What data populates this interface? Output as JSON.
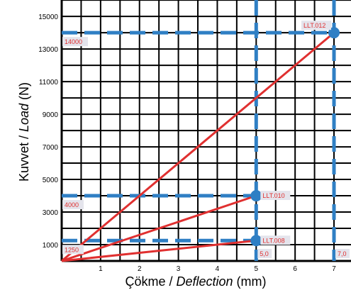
{
  "chart_data": {
    "type": "line",
    "xlabel": {
      "prefix": "Çökme / ",
      "emph": "Deflection",
      "suffix": " (mm)"
    },
    "ylabel": {
      "prefix": "Kuvvet / ",
      "emph": "Load",
      "suffix": " (N)"
    },
    "xlim": [
      0,
      7.5
    ],
    "ylim": [
      0,
      16000
    ],
    "x_ticks": [
      1,
      2,
      3,
      4,
      5,
      6,
      7
    ],
    "y_ticks": [
      1000,
      3000,
      5000,
      7000,
      9000,
      11000,
      13000,
      15000
    ],
    "grid": true,
    "series": [
      {
        "name": "LLT.008",
        "points": [
          [
            0,
            0
          ],
          [
            5.0,
            1250
          ]
        ],
        "color": "#e03030"
      },
      {
        "name": "LLT.010",
        "points": [
          [
            0,
            0
          ],
          [
            5.0,
            4000
          ]
        ],
        "color": "#e03030"
      },
      {
        "name": "LLT.012",
        "points": [
          [
            0,
            0
          ],
          [
            7.0,
            14000
          ]
        ],
        "color": "#e03030"
      }
    ],
    "reference_lines": {
      "color": "#2f7fc4",
      "horizontal": [
        {
          "y": 1250,
          "to_x": 5.0,
          "label": "1250"
        },
        {
          "y": 4000,
          "to_x": 5.0,
          "label": "4000"
        },
        {
          "y": 14000,
          "to_x": 7.0,
          "label": "14000"
        }
      ],
      "vertical": [
        {
          "x": 5.0,
          "label": "5,0"
        },
        {
          "x": 7.0,
          "label": "7,0"
        }
      ]
    },
    "marker_color": "#2f7fc4",
    "tag_background": "#e4e4ec",
    "tag_text_color": "#e03030"
  }
}
